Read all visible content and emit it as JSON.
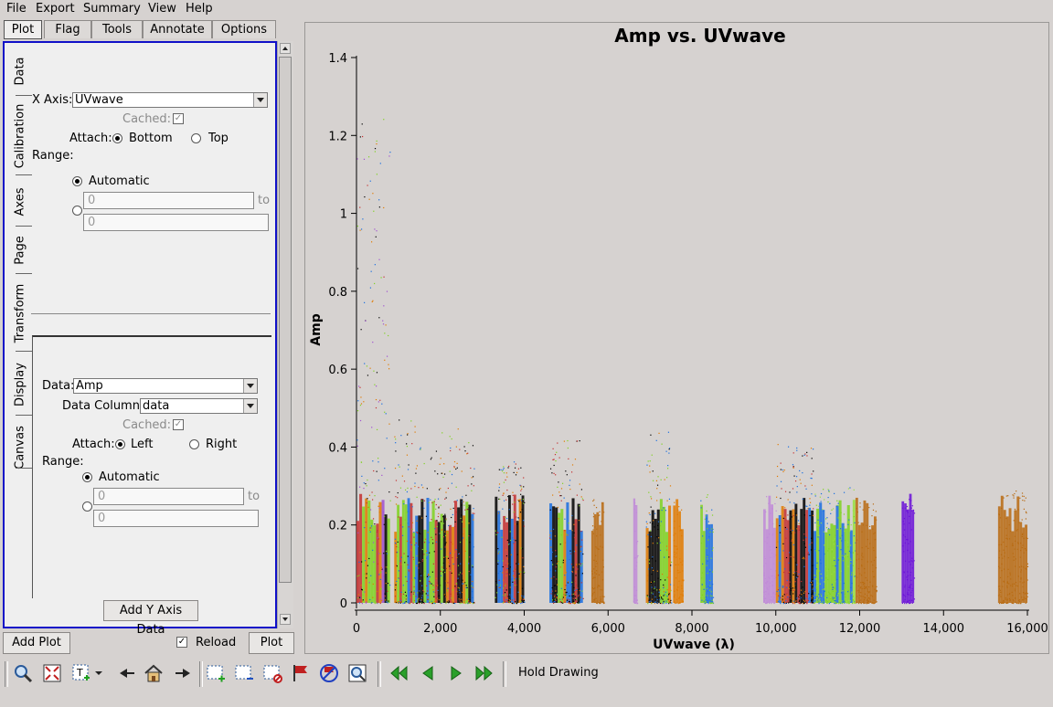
{
  "menu": [
    "File",
    "Export",
    "Summary",
    "View",
    "Help"
  ],
  "tabs": [
    "Plot",
    "Flag",
    "Tools",
    "Annotate",
    "Options"
  ],
  "vtabs": [
    "Data",
    "Calibration",
    "Axes",
    "Page",
    "Transform",
    "Display",
    "Canvas"
  ],
  "xaxis": {
    "label": "X Axis:",
    "value": "UVwave",
    "cached": "Cached:",
    "attach": "Attach:",
    "bottom": "Bottom",
    "top": "Top",
    "range": "Range:",
    "automatic": "Automatic",
    "min": "0",
    "to": "to",
    "max": "0"
  },
  "yaxis": {
    "data_label": "Data:",
    "data_value": "Amp",
    "column_label": "Data Column:",
    "column_value": "data",
    "cached": "Cached:",
    "attach": "Attach:",
    "left": "Left",
    "right": "Right",
    "range": "Range:",
    "automatic": "Automatic",
    "min": "0",
    "to": "to",
    "max": "0"
  },
  "buttons": {
    "add_y": "Add Y Axis Data",
    "add_plot": "Add Plot",
    "reload": "Reload",
    "plot": "Plot"
  },
  "toolbar": {
    "hold": "Hold Drawing"
  },
  "chart_data": {
    "type": "scatter",
    "title": "Amp vs. UVwave",
    "xlabel": "UVwave (λ)",
    "ylabel": "Amp",
    "xlim": [
      0,
      16000
    ],
    "ylim": [
      0,
      1.4
    ],
    "xticks": [
      0,
      2000,
      4000,
      6000,
      8000,
      10000,
      12000,
      14000,
      16000
    ],
    "xticklabels": [
      "0",
      "2,000",
      "4,000",
      "6,000",
      "8,000",
      "10,000",
      "12,000",
      "14,000",
      "16,000"
    ],
    "yticks": [
      0,
      0.2,
      0.4,
      0.6,
      0.8,
      1,
      1.2,
      1.4
    ],
    "yticklabels": [
      "0",
      "0.2",
      "0.4",
      "0.6",
      "0.8",
      "1",
      "1.2",
      "1.4"
    ],
    "clusters": [
      {
        "x0": 0,
        "x1": 800,
        "ymax": 1.25,
        "colors": [
          "#000000",
          "#e07a00",
          "#1a6fe0",
          "#c43030",
          "#7fd320",
          "#a050d0"
        ]
      },
      {
        "x0": 900,
        "x1": 1400,
        "ymax": 0.5,
        "colors": [
          "#000000",
          "#e07a00",
          "#1a6fe0",
          "#c43030",
          "#7fd320"
        ]
      },
      {
        "x0": 1400,
        "x1": 2000,
        "ymax": 0.4,
        "colors": [
          "#000000",
          "#e07a00",
          "#1a6fe0",
          "#c43030",
          "#7fd320"
        ]
      },
      {
        "x0": 2000,
        "x1": 2800,
        "ymax": 0.45,
        "colors": [
          "#000000",
          "#e07a00",
          "#1a6fe0",
          "#c43030",
          "#7fd320"
        ]
      },
      {
        "x0": 3300,
        "x1": 4000,
        "ymax": 0.37,
        "colors": [
          "#000000",
          "#e07a00",
          "#1a6fe0",
          "#c43030",
          "#7fd320"
        ]
      },
      {
        "x0": 4600,
        "x1": 5400,
        "ymax": 0.42,
        "colors": [
          "#000000",
          "#e07a00",
          "#1a6fe0",
          "#7fd320",
          "#c43030"
        ]
      },
      {
        "x0": 5600,
        "x1": 5900,
        "ymax": 0.28,
        "colors": [
          "#b86a10"
        ]
      },
      {
        "x0": 6600,
        "x1": 6700,
        "ymax": 0.26,
        "colors": [
          "#c08ad8"
        ]
      },
      {
        "x0": 6900,
        "x1": 7500,
        "ymax": 0.44,
        "colors": [
          "#000000",
          "#e07a00",
          "#1a6fe0",
          "#7fd320"
        ]
      },
      {
        "x0": 7550,
        "x1": 7800,
        "ymax": 0.26,
        "colors": [
          "#e07a00"
        ]
      },
      {
        "x0": 8200,
        "x1": 8500,
        "ymax": 0.28,
        "colors": [
          "#1a6fe0",
          "#7fd320"
        ]
      },
      {
        "x0": 9700,
        "x1": 10000,
        "ymax": 0.3,
        "colors": [
          "#c08ad8"
        ]
      },
      {
        "x0": 10000,
        "x1": 10900,
        "ymax": 0.41,
        "colors": [
          "#000000",
          "#1a6fe0",
          "#e07a00",
          "#c43030"
        ]
      },
      {
        "x0": 10900,
        "x1": 11900,
        "ymax": 0.3,
        "colors": [
          "#7fd320",
          "#9ae040",
          "#1a6fe0"
        ]
      },
      {
        "x0": 11900,
        "x1": 12400,
        "ymax": 0.26,
        "colors": [
          "#b86a10"
        ]
      },
      {
        "x0": 13000,
        "x1": 13300,
        "ymax": 0.27,
        "colors": [
          "#6a10d8"
        ]
      },
      {
        "x0": 15300,
        "x1": 16000,
        "ymax": 0.29,
        "colors": [
          "#b86a10"
        ]
      }
    ]
  }
}
